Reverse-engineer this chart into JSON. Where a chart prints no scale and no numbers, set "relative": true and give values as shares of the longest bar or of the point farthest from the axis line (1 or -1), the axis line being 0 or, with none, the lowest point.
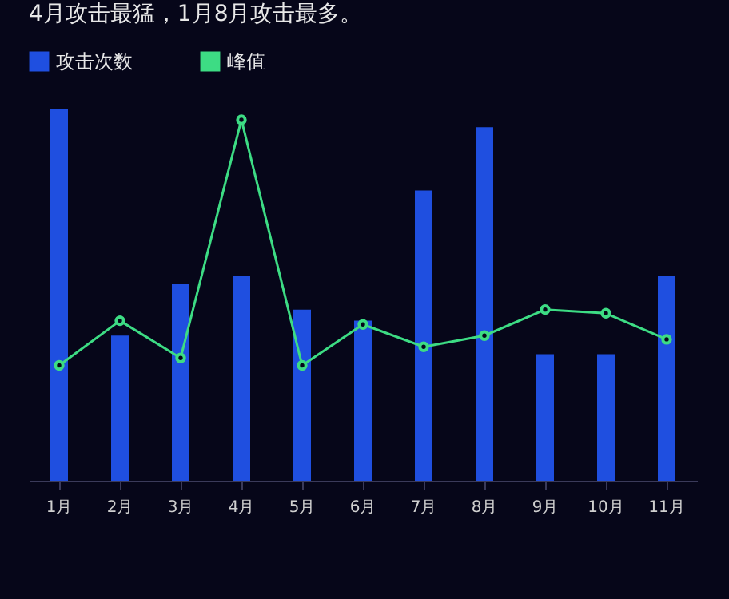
{
  "chart_data": {
    "type": "bar",
    "title": "4月攻击最猛，1月8月攻击最多。",
    "relative": true,
    "legend": "top left",
    "categories": [
      "1月",
      "2月",
      "3月",
      "4月",
      "5月",
      "6月",
      "7月",
      "8月",
      "9月",
      "10月",
      "11月"
    ],
    "series": [
      {
        "name": "攻击次数",
        "color": "#1f4fe0",
        "values": [
          1,
          0.39,
          0.53,
          0.55,
          0.46,
          0.43,
          0.78,
          0.95,
          0.34,
          0.34,
          0.55
        ]
      },
      {
        "name": "峰值",
        "type": "line",
        "color": "#3ddc84",
        "marker": "circle",
        "values": [
          0.31,
          0.43,
          0.33,
          0.97,
          0.31,
          0.42,
          0.36,
          0.39,
          0.46,
          0.45,
          0.38
        ]
      }
    ]
  }
}
